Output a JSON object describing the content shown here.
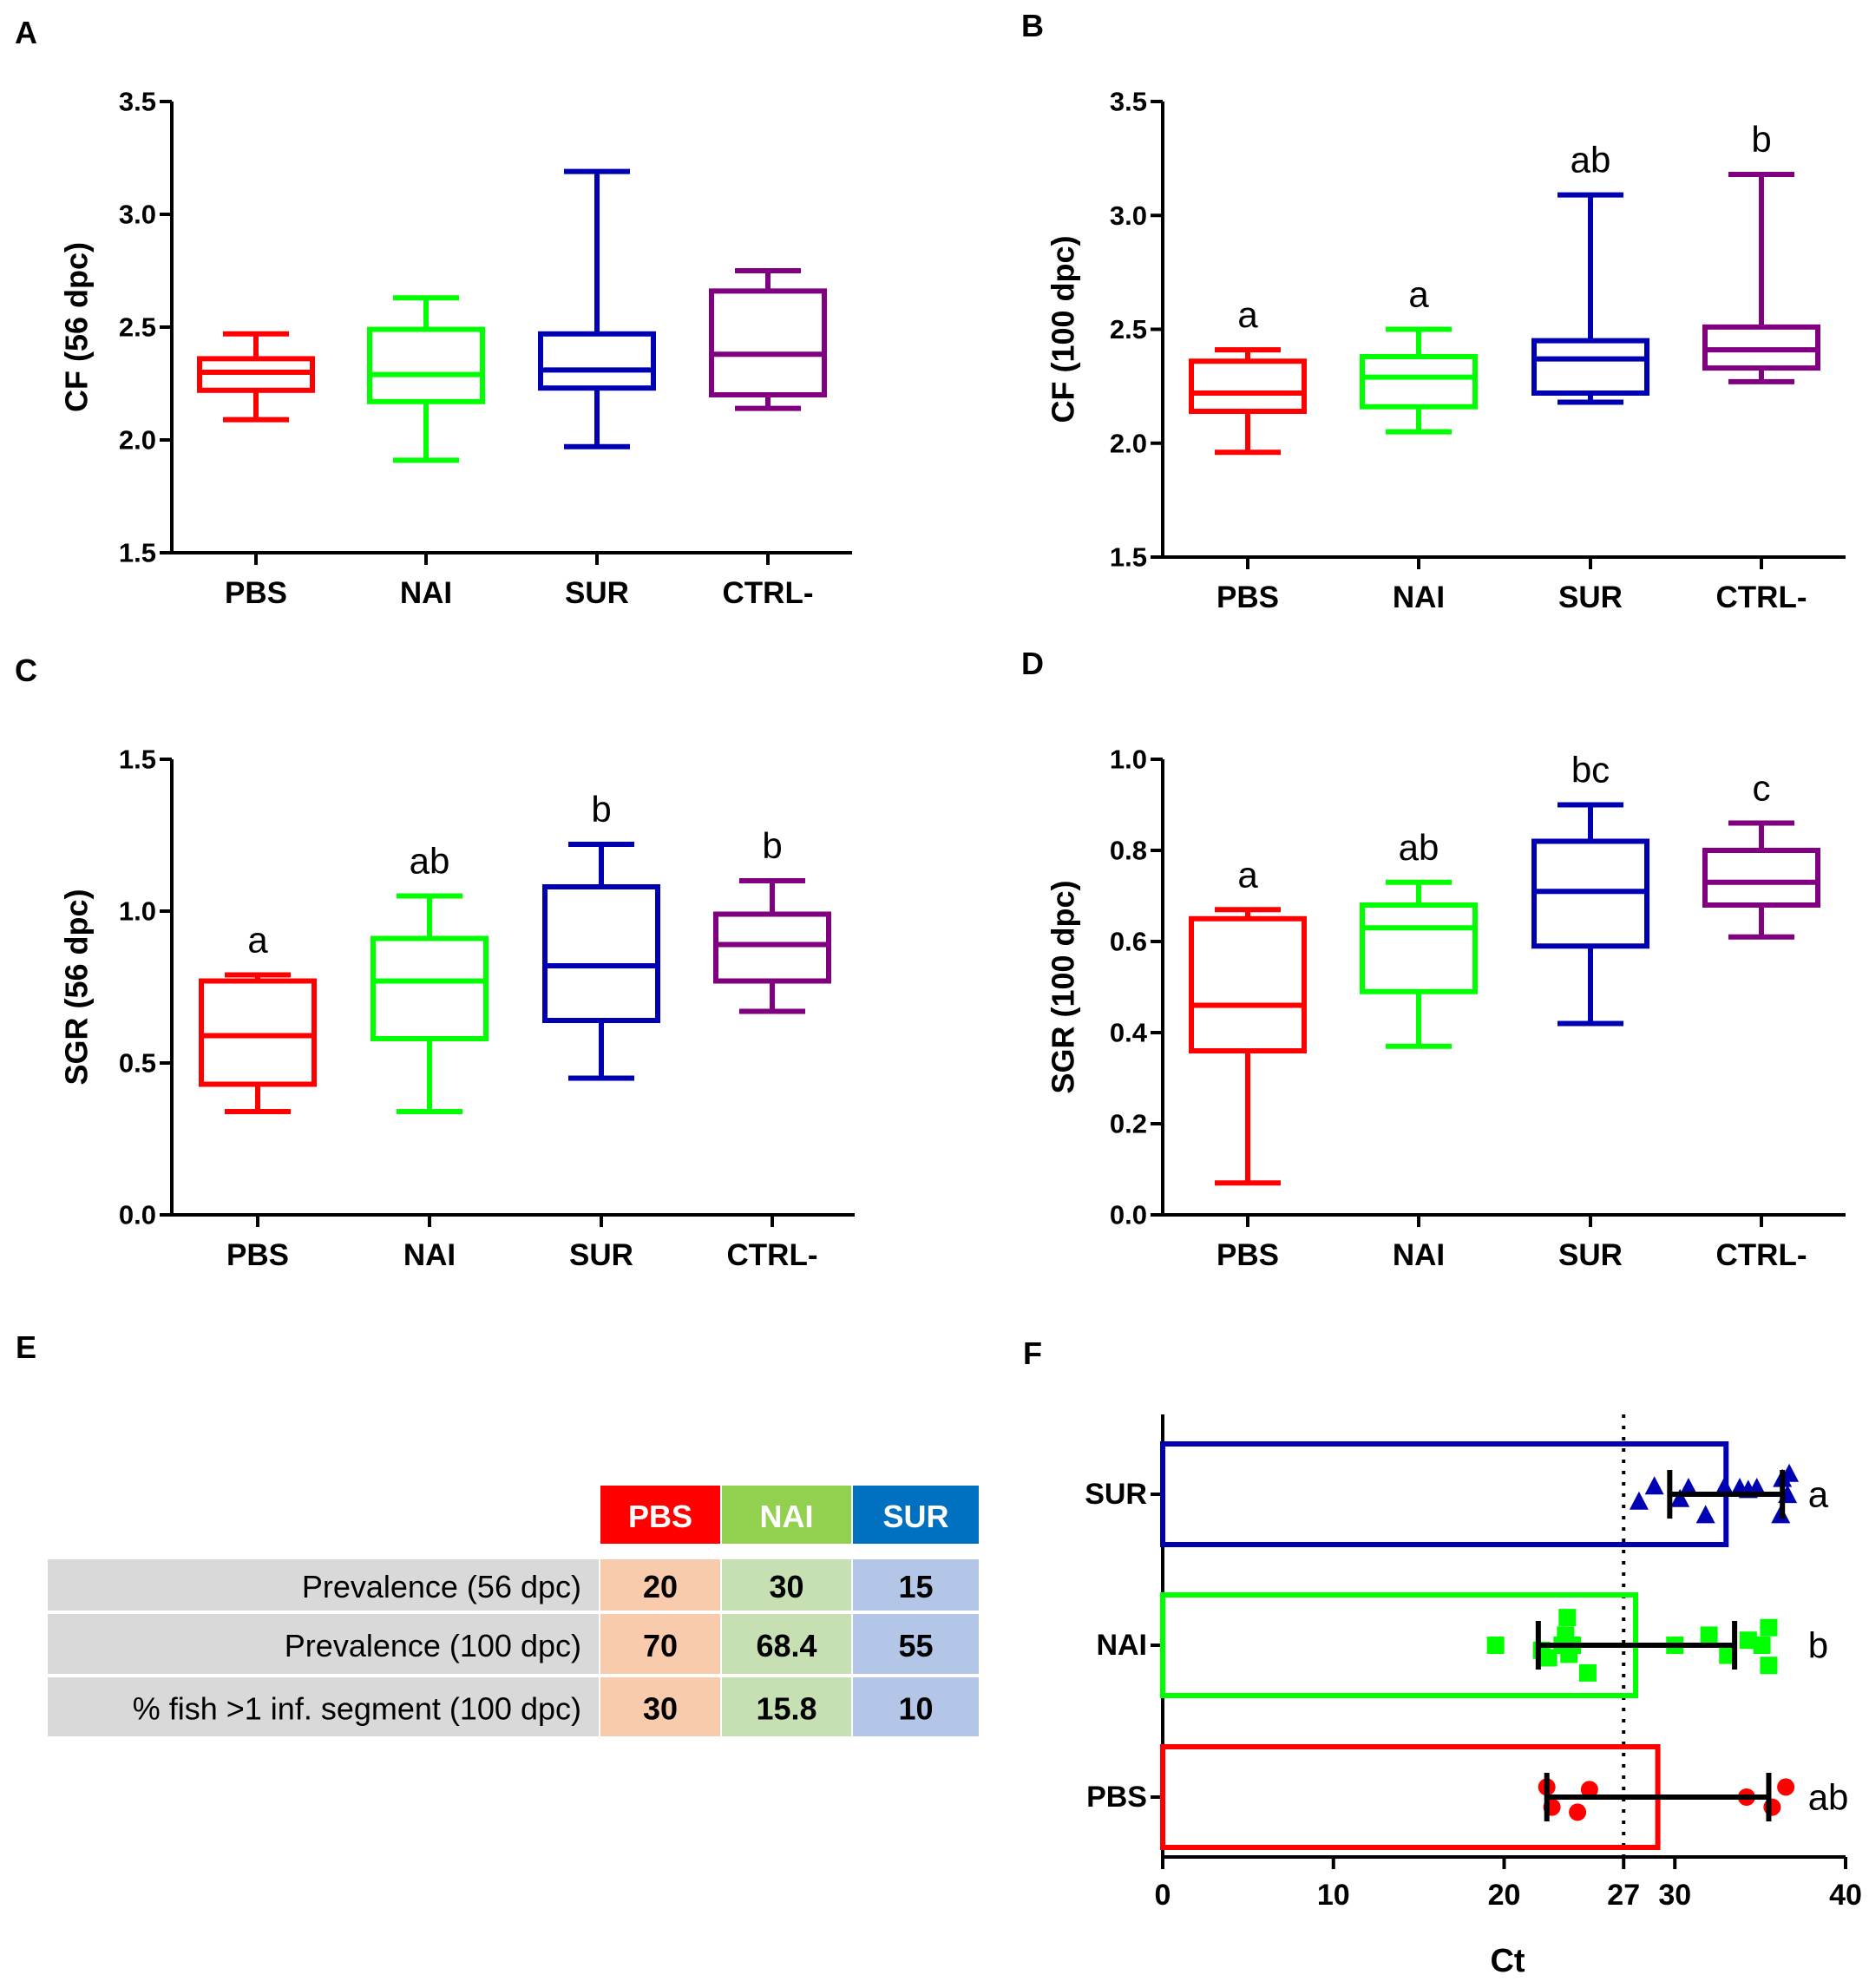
{
  "figure": {
    "colors": {
      "PBS": "#ff0000",
      "NAI": "#00ff00",
      "SUR": "#0000b3",
      "CTRL-": "#800080"
    },
    "panels": [
      {
        "key": "A",
        "label": "A"
      },
      {
        "key": "B",
        "label": "B"
      },
      {
        "key": "C",
        "label": "C"
      },
      {
        "key": "D",
        "label": "D"
      },
      {
        "key": "E",
        "label": "E"
      },
      {
        "key": "F",
        "label": "F"
      }
    ]
  },
  "chart_data": [
    {
      "panel": "A",
      "type": "box",
      "ylabel": "CF (56 dpc)",
      "ylim": [
        1.5,
        3.5
      ],
      "yticks": [
        "1.5",
        "2.0",
        "2.5",
        "3.0",
        "3.5"
      ],
      "categories": [
        "PBS",
        "NAI",
        "SUR",
        "CTRL-"
      ],
      "boxes": [
        {
          "min": 2.09,
          "q1": 2.22,
          "median": 2.3,
          "q3": 2.36,
          "max": 2.47
        },
        {
          "min": 1.91,
          "q1": 2.17,
          "median": 2.29,
          "q3": 2.49,
          "max": 2.63
        },
        {
          "min": 1.97,
          "q1": 2.23,
          "median": 2.31,
          "q3": 2.47,
          "max": 3.19
        },
        {
          "min": 2.14,
          "q1": 2.2,
          "median": 2.38,
          "q3": 2.66,
          "max": 2.75
        }
      ],
      "letters": [
        "",
        "",
        "",
        ""
      ]
    },
    {
      "panel": "B",
      "type": "box",
      "ylabel": "CF (100 dpc)",
      "ylim": [
        1.5,
        3.5
      ],
      "yticks": [
        "1.5",
        "2.0",
        "2.5",
        "3.0",
        "3.5"
      ],
      "categories": [
        "PBS",
        "NAI",
        "SUR",
        "CTRL-"
      ],
      "boxes": [
        {
          "min": 1.96,
          "q1": 2.14,
          "median": 2.22,
          "q3": 2.36,
          "max": 2.41
        },
        {
          "min": 2.05,
          "q1": 2.16,
          "median": 2.29,
          "q3": 2.38,
          "max": 2.5
        },
        {
          "min": 2.18,
          "q1": 2.22,
          "median": 2.37,
          "q3": 2.45,
          "max": 3.09
        },
        {
          "min": 2.27,
          "q1": 2.33,
          "median": 2.41,
          "q3": 2.51,
          "max": 3.18
        }
      ],
      "letters": [
        "a",
        "a",
        "ab",
        "b"
      ]
    },
    {
      "panel": "C",
      "type": "box",
      "ylabel": "SGR (56 dpc)",
      "ylim": [
        0.0,
        1.5
      ],
      "yticks": [
        "0.0",
        "0.5",
        "1.0",
        "1.5"
      ],
      "categories": [
        "PBS",
        "NAI",
        "SUR",
        "CTRL-"
      ],
      "boxes": [
        {
          "min": 0.34,
          "q1": 0.43,
          "median": 0.59,
          "q3": 0.77,
          "max": 0.79
        },
        {
          "min": 0.34,
          "q1": 0.58,
          "median": 0.77,
          "q3": 0.91,
          "max": 1.05
        },
        {
          "min": 0.45,
          "q1": 0.64,
          "median": 0.82,
          "q3": 1.08,
          "max": 1.22
        },
        {
          "min": 0.67,
          "q1": 0.77,
          "median": 0.89,
          "q3": 0.99,
          "max": 1.1
        }
      ],
      "letters": [
        "a",
        "ab",
        "b",
        "b"
      ]
    },
    {
      "panel": "D",
      "type": "box",
      "ylabel": "SGR (100 dpc)",
      "ylim": [
        0.0,
        1.0
      ],
      "yticks": [
        "0.0",
        "0.2",
        "0.4",
        "0.6",
        "0.8",
        "1.0"
      ],
      "categories": [
        "PBS",
        "NAI",
        "SUR",
        "CTRL-"
      ],
      "boxes": [
        {
          "min": 0.07,
          "q1": 0.36,
          "median": 0.46,
          "q3": 0.65,
          "max": 0.67
        },
        {
          "min": 0.37,
          "q1": 0.49,
          "median": 0.63,
          "q3": 0.68,
          "max": 0.73
        },
        {
          "min": 0.42,
          "q1": 0.59,
          "median": 0.71,
          "q3": 0.82,
          "max": 0.9
        },
        {
          "min": 0.61,
          "q1": 0.68,
          "median": 0.73,
          "q3": 0.8,
          "max": 0.86
        }
      ],
      "letters": [
        "a",
        "ab",
        "bc",
        "c"
      ]
    },
    {
      "panel": "E",
      "type": "table",
      "columns": [
        "PBS",
        "NAI",
        "SUR"
      ],
      "header_colors": [
        "#ff0000",
        "#92d050",
        "#0070c0"
      ],
      "cell_colors": [
        "#f8cbad",
        "#c6e0b4",
        "#b4c6e7"
      ],
      "row_label_color": "#d9d9d9",
      "rows": [
        {
          "label": "Prevalence (56 dpc)",
          "values": [
            "20",
            "30",
            "15"
          ]
        },
        {
          "label": "Prevalence (100 dpc)",
          "values": [
            "70",
            "68.4",
            "55"
          ]
        },
        {
          "label": "% fish >1 inf. segment (100 dpc)",
          "values": [
            "30",
            "15.8",
            "10"
          ]
        }
      ]
    },
    {
      "panel": "F",
      "type": "bar",
      "orientation": "horizontal",
      "xlabel": "Ct",
      "xlim": [
        0,
        40
      ],
      "xticks": [
        "0",
        "10",
        "20",
        "27",
        "30",
        "40"
      ],
      "xtick_values": [
        0,
        10,
        20,
        27,
        30,
        40
      ],
      "threshold": 27,
      "categories": [
        "SUR",
        "NAI",
        "PBS"
      ],
      "series": [
        {
          "name": "SUR",
          "mean": 33.0,
          "sd_low": 29.7,
          "sd_high": 36.3,
          "marker": "triangle",
          "points": [
            [
              27.9,
              0.15
            ],
            [
              28.8,
              -0.15
            ],
            [
              30.8,
              -0.12
            ],
            [
              30.3,
              0.1
            ],
            [
              31.8,
              0.42
            ],
            [
              32.9,
              -0.14
            ],
            [
              33.8,
              -0.12
            ],
            [
              34.3,
              -0.08
            ],
            [
              34.8,
              -0.12
            ],
            [
              36.3,
              -0.3
            ],
            [
              36.6,
              0.02
            ],
            [
              36.2,
              0.42
            ],
            [
              36.7,
              -0.4
            ]
          ],
          "letter": "a"
        },
        {
          "name": "NAI",
          "mean": 27.7,
          "sd_low": 22.0,
          "sd_high": 33.5,
          "marker": "square",
          "points": [
            [
              19.5,
              0.0
            ],
            [
              22.2,
              0.1
            ],
            [
              22.6,
              0.25
            ],
            [
              23.4,
              0.0
            ],
            [
              23.6,
              -0.2
            ],
            [
              23.8,
              0.18
            ],
            [
              24.0,
              0.0
            ],
            [
              23.7,
              -0.55
            ],
            [
              24.9,
              0.55
            ],
            [
              30.0,
              0.0
            ],
            [
              32.0,
              -0.2
            ],
            [
              33.1,
              0.2
            ],
            [
              34.3,
              -0.1
            ],
            [
              35.1,
              0.0
            ],
            [
              35.5,
              0.4
            ],
            [
              35.5,
              -0.35
            ]
          ],
          "letter": "b"
        },
        {
          "name": "PBS",
          "mean": 29.0,
          "sd_low": 22.5,
          "sd_high": 35.5,
          "marker": "circle",
          "points": [
            [
              22.5,
              -0.2
            ],
            [
              22.8,
              0.2
            ],
            [
              24.3,
              0.3
            ],
            [
              25.0,
              -0.15
            ],
            [
              34.2,
              0.0
            ],
            [
              35.7,
              0.2
            ],
            [
              36.5,
              -0.2
            ]
          ],
          "letter": "ab"
        }
      ]
    }
  ]
}
